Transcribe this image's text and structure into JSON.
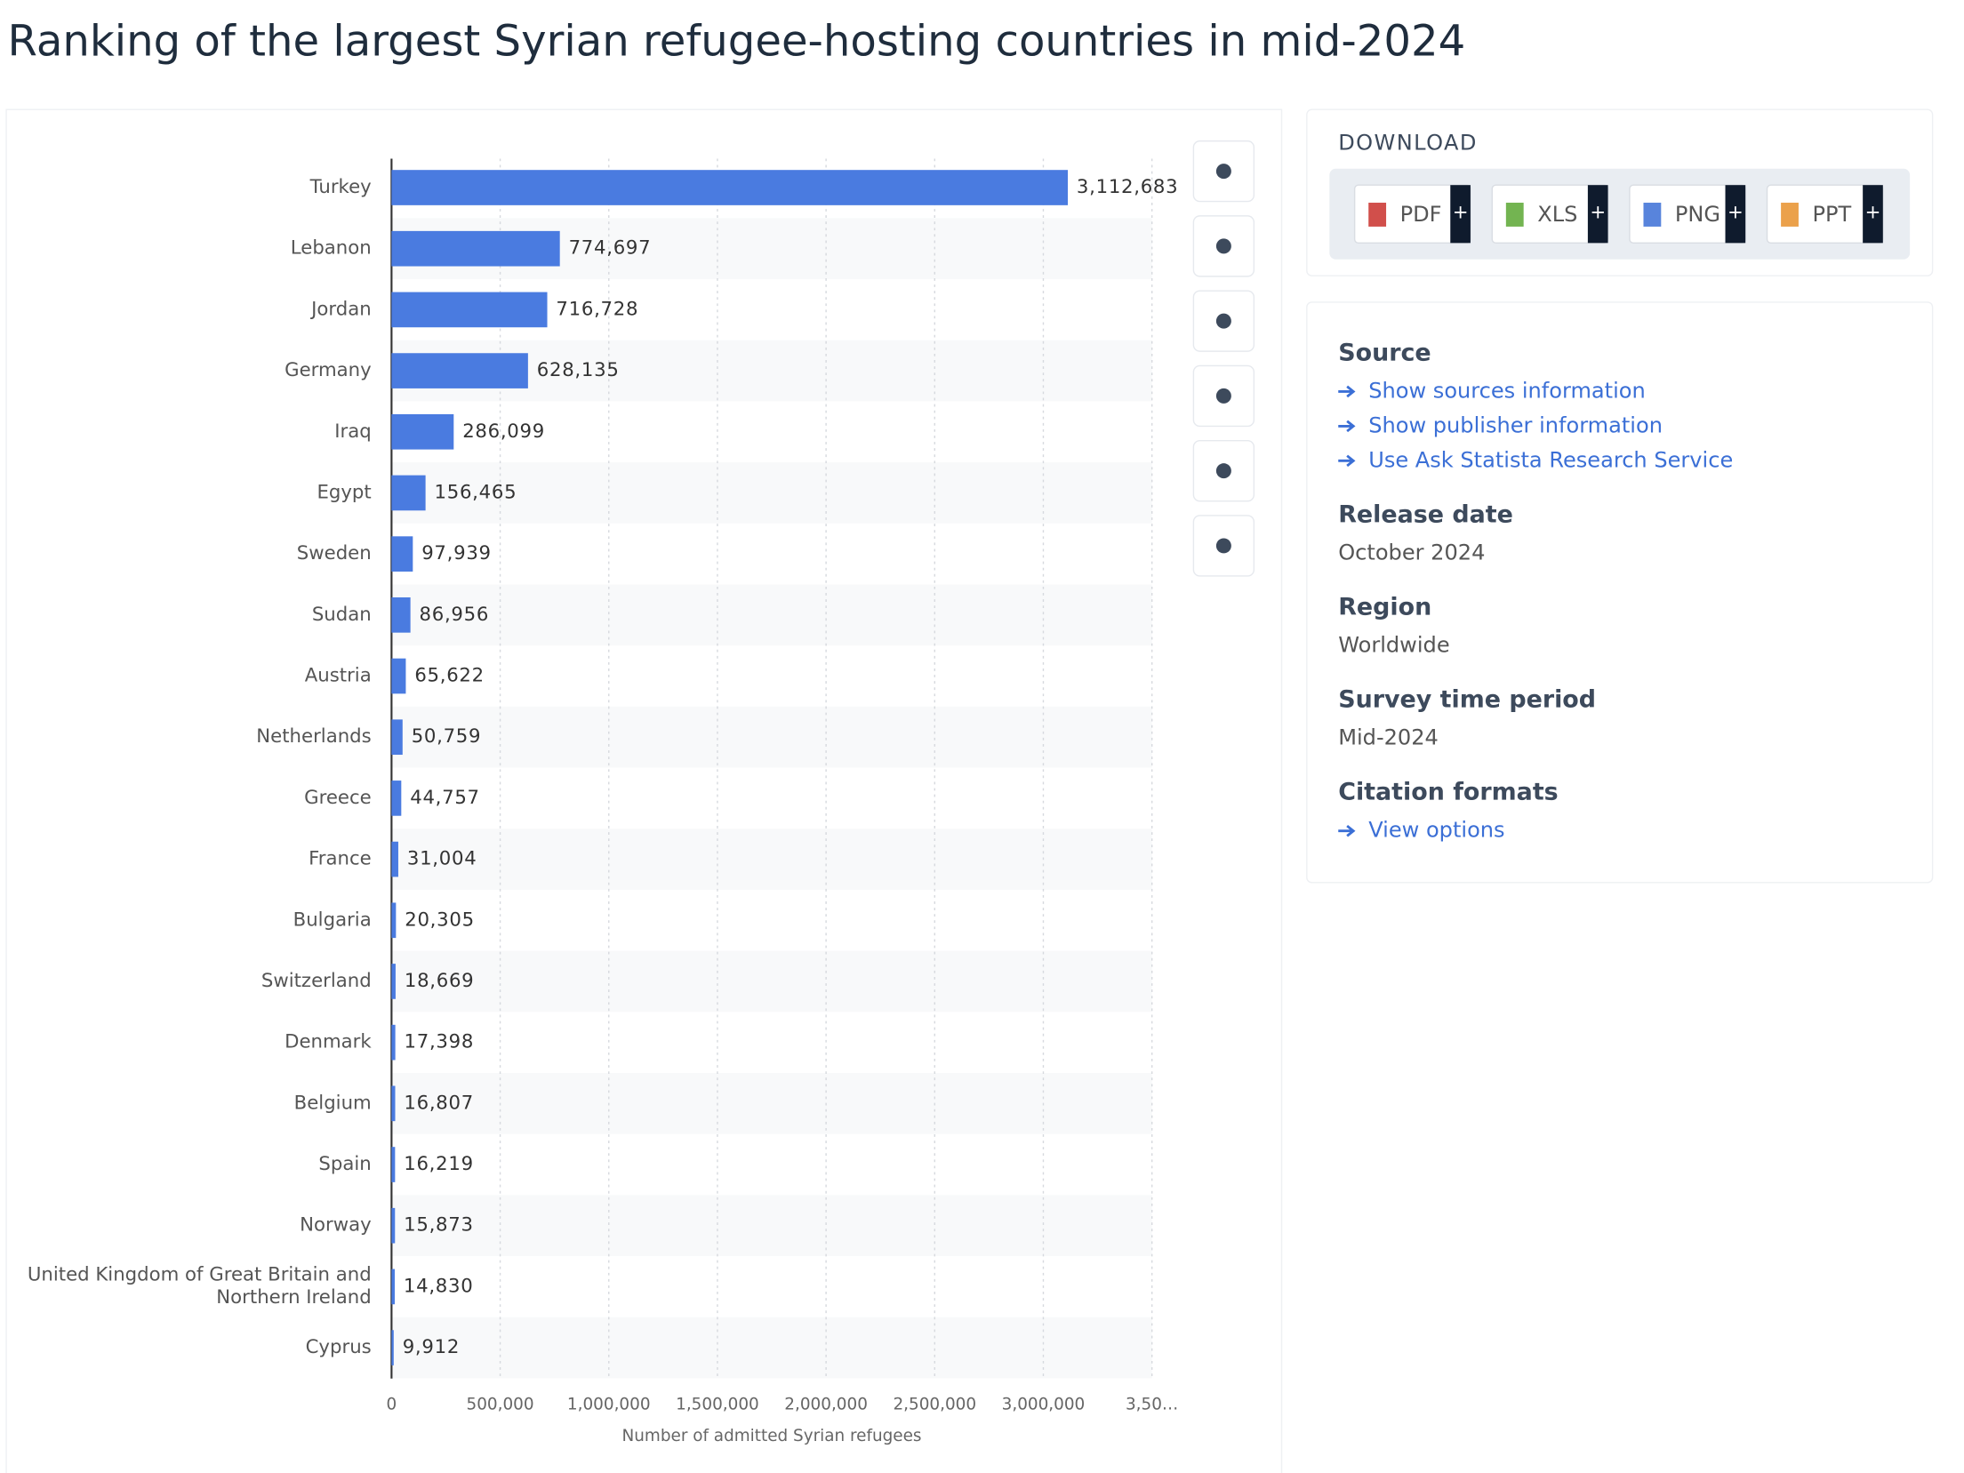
{
  "chart_data": {
    "type": "bar",
    "orientation": "horizontal",
    "title": "Ranking of the largest Syrian refugee-hosting countries in mid-2024",
    "categories": [
      "Turkey",
      "Lebanon",
      "Jordan",
      "Germany",
      "Iraq",
      "Egypt",
      "Sweden",
      "Sudan",
      "Austria",
      "Netherlands",
      "Greece",
      "France",
      "Bulgaria",
      "Switzerland",
      "Denmark",
      "Belgium",
      "Spain",
      "Norway",
      "United Kingdom of Great Britain and Northern Ireland",
      "Cyprus"
    ],
    "values": [
      3112683,
      774697,
      716728,
      628135,
      286099,
      156465,
      97939,
      86956,
      65622,
      50759,
      44757,
      31004,
      20305,
      18669,
      17398,
      16807,
      16219,
      15873,
      14830,
      9912
    ],
    "value_labels": [
      "3,112,683",
      "774,697",
      "716,728",
      "628,135",
      "286,099",
      "156,465",
      "97,939",
      "86,956",
      "65,622",
      "50,759",
      "44,757",
      "31,004",
      "20,305",
      "18,669",
      "17,398",
      "16,807",
      "16,219",
      "15,873",
      "14,830",
      "9,912"
    ],
    "color": "#4a7be0",
    "xlabel": "Number of admitted Syrian refugees",
    "xlim": [
      0,
      3500000
    ],
    "xticks": [
      0,
      {
        "value": 500000,
        "label": "500,000"
      },
      {
        "value": 1000000,
        "label": "1,000,000"
      },
      {
        "value": 1500000,
        "label": "1,500,000"
      },
      {
        "value": 2000000,
        "label": "2,000,000"
      },
      {
        "value": 2500000,
        "label": "2,500,000"
      },
      {
        "value": 3000000,
        "label": "3,000,000"
      },
      {
        "value": 3500000,
        "label": "3,50…"
      }
    ],
    "grid": true
  },
  "download": {
    "title": "DOWNLOAD",
    "formats": [
      "PDF",
      "XLS",
      "PNG",
      "PPT"
    ],
    "add": "+"
  },
  "details": [
    {
      "heading": "Source",
      "links": [
        "Show sources information",
        "Show publisher information",
        "Use Ask Statista Research Service"
      ]
    },
    {
      "heading": "Release date",
      "text": "October 2024"
    },
    {
      "heading": "Region",
      "text": "Worldwide"
    },
    {
      "heading": "Survey time period",
      "text": "Mid-2024"
    },
    {
      "heading": "Citation formats",
      "links": [
        "View options"
      ]
    }
  ]
}
